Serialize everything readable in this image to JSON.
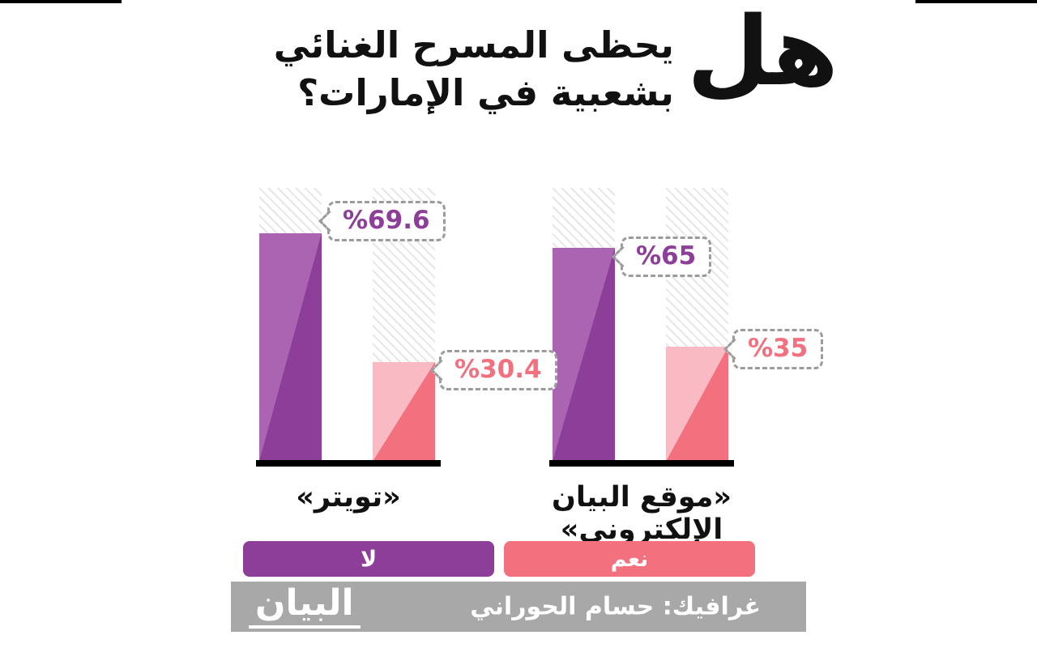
{
  "title": {
    "big_word": "هل",
    "line1": "يحظى المسرح الغنائي",
    "line2": "بشعبية في الإمارات؟"
  },
  "chart_data": {
    "type": "bar",
    "title": "هل يحظى المسرح الغنائي بشعبية في الإمارات؟",
    "unit": "%",
    "ylim": [
      0,
      100
    ],
    "grid": false,
    "legend_position": "bottom",
    "categories": [
      "«تويتر»",
      "«موقع البيان الإلكتروني»"
    ],
    "series": [
      {
        "name": "لا",
        "color": "#8c3e98",
        "values": [
          69.6,
          65
        ]
      },
      {
        "name": "نعم",
        "color": "#f3707f",
        "values": [
          30.4,
          35
        ]
      }
    ],
    "value_labels": [
      [
        "%69.6",
        "%65"
      ],
      [
        "%30.4",
        "%35"
      ]
    ]
  },
  "footer": {
    "credit": "غرافيك: حسام الحوراني",
    "logo": "البيان"
  },
  "colors": {
    "purple_dark": "#8c3e98",
    "purple_light": "#aa64b1",
    "pink_dark": "#f3707f",
    "pink_light": "#f9bac3",
    "hatch_gray": "#e6e6e6",
    "footer_gray": "#a8a8a8",
    "callout_border": "#9b9b9b",
    "text_black": "#111111"
  }
}
